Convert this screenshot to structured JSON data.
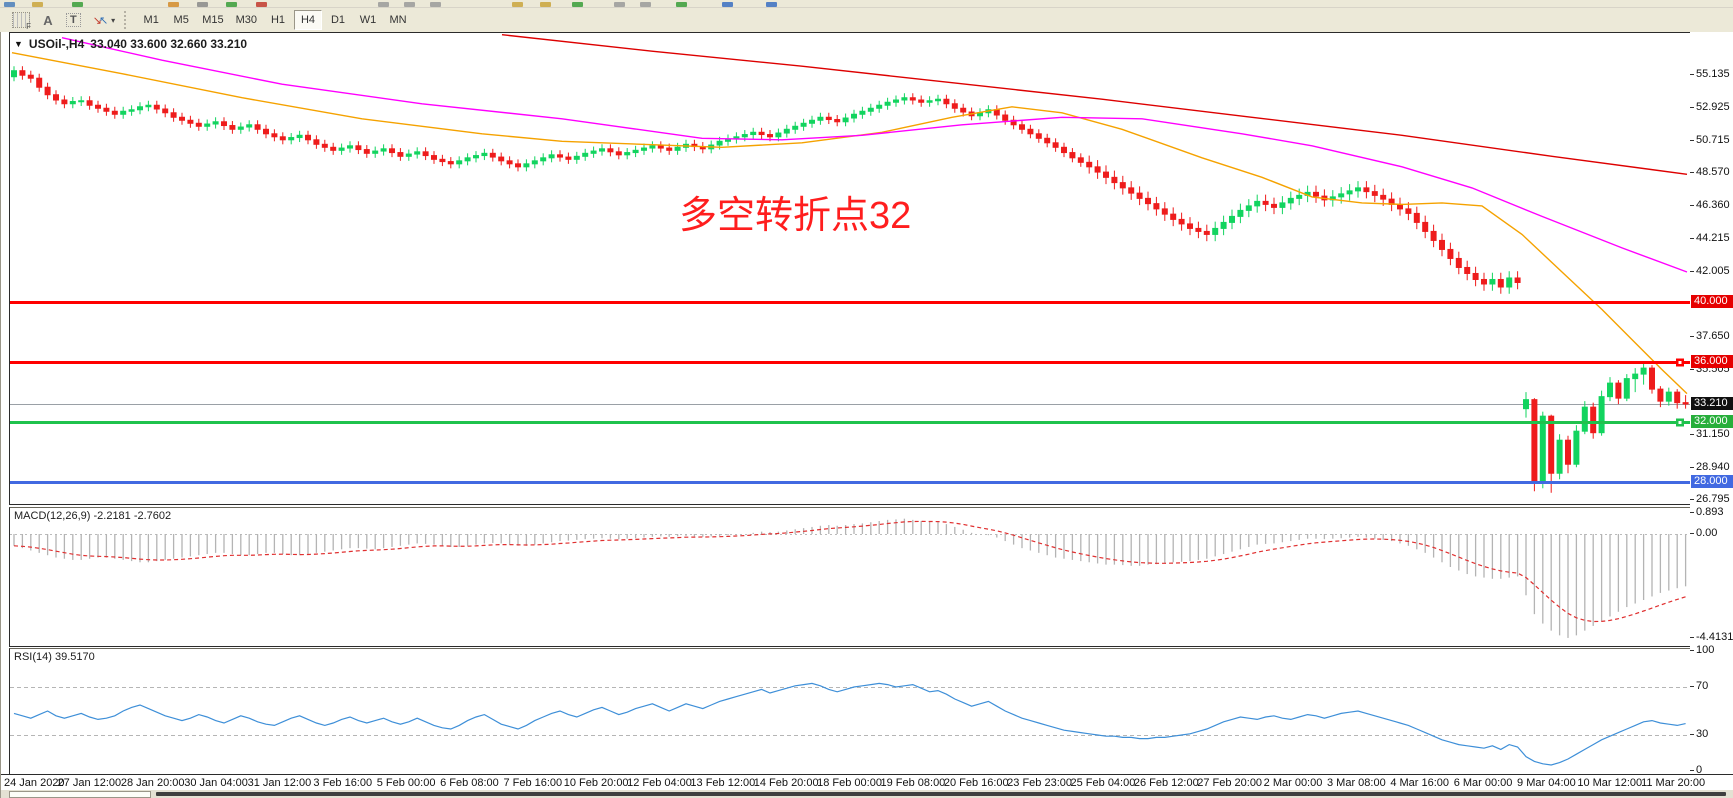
{
  "toolbar": {
    "font_tool_label": "F",
    "letter_tool_label": "A",
    "text_tool_label": "T",
    "arrow_tool_caret": "▾",
    "timeframes": [
      "M1",
      "M5",
      "M15",
      "M30",
      "H1",
      "H4",
      "D1",
      "W1",
      "MN"
    ],
    "active_timeframe": "H4",
    "clipped_icon_colors": [
      [
        "#4a7ebb",
        4
      ],
      [
        "#caa43c",
        32
      ],
      [
        "#3a9d3a",
        72
      ],
      [
        "#d38b2a",
        168
      ],
      [
        "#8a8a8a",
        197
      ],
      [
        "#3a9d3a",
        226
      ],
      [
        "#c23a2e",
        256
      ],
      [
        "#9a9a9a",
        378
      ],
      [
        "#9a9a9a",
        404
      ],
      [
        "#9a9a9a",
        430
      ],
      [
        "#caa43c",
        512
      ],
      [
        "#caa43c",
        540
      ],
      [
        "#3a9d3a",
        572
      ],
      [
        "#9a9a9a",
        614
      ],
      [
        "#9a9a9a",
        640
      ],
      [
        "#3a9d3a",
        676
      ],
      [
        "#3a6fc2",
        722
      ],
      [
        "#3a6fc2",
        766
      ]
    ]
  },
  "chart": {
    "dropdown_glyph": "▼",
    "symbol": "USOil-,H4",
    "ohlc_readout": "33.040 33.600 32.660 33.210",
    "annotation": {
      "text": "多空转折点32",
      "color": "#ff1e1e"
    },
    "price_axis_labels": [
      "55.135",
      "52.925",
      "50.715",
      "48.570",
      "46.360",
      "44.215",
      "42.005",
      "37.650",
      "35.505",
      "31.150",
      "28.940",
      "26.795"
    ],
    "price_badges": [
      {
        "text": "40.000",
        "price": 40.0,
        "bg": "#e60000"
      },
      {
        "text": "36.000",
        "price": 36.0,
        "bg": "#e60000"
      },
      {
        "text": "33.210",
        "price": 33.21,
        "bg": "#101010"
      },
      {
        "text": "32.000",
        "price": 32.0,
        "bg": "#27ae3b"
      },
      {
        "text": "28.000",
        "price": 28.0,
        "bg": "#4169e1"
      }
    ],
    "hlines": [
      {
        "name": "level-40",
        "price": 40.0,
        "color": "#ff0000",
        "w": 3,
        "handle": false
      },
      {
        "name": "level-36",
        "price": 36.0,
        "color": "#ff0000",
        "w": 3,
        "handle": true
      },
      {
        "name": "current-price",
        "price": 33.21,
        "color": "#9aa0a6",
        "w": 1,
        "handle": false
      },
      {
        "name": "level-32",
        "price": 32.0,
        "color": "#1fc24d",
        "w": 3,
        "handle": true
      },
      {
        "name": "level-28",
        "price": 28.0,
        "color": "#4169e1",
        "w": 3,
        "handle": false
      }
    ],
    "time_labels": [
      "24 Jan 2020",
      "27 Jan 12:00",
      "28 Jan 20:00",
      "30 Jan 04:00",
      "31 Jan 12:00",
      "3 Feb 16:00",
      "5 Feb 00:00",
      "6 Feb 08:00",
      "7 Feb 16:00",
      "10 Feb 20:00",
      "12 Feb 04:00",
      "13 Feb 12:00",
      "14 Feb 20:00",
      "18 Feb 00:00",
      "19 Feb 08:00",
      "20 Feb 16:00",
      "23 Feb 23:00",
      "25 Feb 04:00",
      "26 Feb 12:00",
      "27 Feb 20:00",
      "2 Mar 00:00",
      "3 Mar 08:00",
      "4 Mar 16:00",
      "6 Mar 00:00",
      "9 Mar 04:00",
      "10 Mar 12:00",
      "11 Mar 20:00"
    ]
  },
  "indicators": {
    "macd": {
      "name": "MACD(12,26,9)",
      "values": "-2.2181 -2.7602",
      "scale": [
        {
          "v": 0.893,
          "text": "0.893"
        },
        {
          "v": 0,
          "text": "0.00"
        },
        {
          "v": -4.4131,
          "text": "-4.4131"
        }
      ]
    },
    "rsi": {
      "name": "RSI(14)",
      "value": "39.5170",
      "scale": [
        {
          "v": 100,
          "text": "100"
        },
        {
          "v": 70,
          "text": "70"
        },
        {
          "v": 30,
          "text": "30"
        },
        {
          "v": 0,
          "text": "0"
        }
      ],
      "levels": [
        70,
        30
      ]
    }
  },
  "chart_data": {
    "type": "candlestick",
    "symbol": "USOil",
    "timeframe": "H4",
    "title": "USOil-,H4 33.040 33.600 32.660 33.210",
    "visible_range": {
      "first_bar": "24 Jan 2020",
      "last_bar": "11 Mar 2020 20:00"
    },
    "price_axis_range": [
      26.6,
      57.9
    ],
    "grid": false,
    "up_color": "#12d45f",
    "down_color": "#ee1c1c",
    "first_open": 55.0,
    "wick": 0.3,
    "wick_volatile": 0.45,
    "volatile_from_bar": 128,
    "closes": [
      55.4,
      55.1,
      54.9,
      54.3,
      53.8,
      53.45,
      53.2,
      53.35,
      53.4,
      53.1,
      52.9,
      52.7,
      52.5,
      52.7,
      52.8,
      53.0,
      53.1,
      52.85,
      52.6,
      52.3,
      52.1,
      51.9,
      51.7,
      51.85,
      52.0,
      51.75,
      51.5,
      51.65,
      51.8,
      51.5,
      51.2,
      51.0,
      50.8,
      50.95,
      51.1,
      50.8,
      50.5,
      50.3,
      50.1,
      50.25,
      50.4,
      50.15,
      49.9,
      50.05,
      50.2,
      49.95,
      49.7,
      49.85,
      50.0,
      49.75,
      49.5,
      49.35,
      49.2,
      49.4,
      49.6,
      49.75,
      49.9,
      49.65,
      49.4,
      49.2,
      49.0,
      49.2,
      49.4,
      49.6,
      49.8,
      49.65,
      49.5,
      49.7,
      49.9,
      50.05,
      50.2,
      50.0,
      49.8,
      49.95,
      50.1,
      50.25,
      50.4,
      50.25,
      50.1,
      50.3,
      50.5,
      50.35,
      50.2,
      50.45,
      50.7,
      50.85,
      51.0,
      51.15,
      51.3,
      51.15,
      51.0,
      51.25,
      51.5,
      51.7,
      51.9,
      52.1,
      52.3,
      52.15,
      52.0,
      52.25,
      52.5,
      52.7,
      52.9,
      53.1,
      53.3,
      53.45,
      53.6,
      53.45,
      53.3,
      53.4,
      53.5,
      53.2,
      52.9,
      52.65,
      52.4,
      52.6,
      52.8,
      52.45,
      52.1,
      51.8,
      51.5,
      51.2,
      50.9,
      50.6,
      50.3,
      49.95,
      49.6,
      49.3,
      49.0,
      48.65,
      48.3,
      47.95,
      47.6,
      47.25,
      46.9,
      46.55,
      46.2,
      45.85,
      45.5,
      45.2,
      44.9,
      44.7,
      44.5,
      44.9,
      45.3,
      45.7,
      46.1,
      46.4,
      46.7,
      46.5,
      46.3,
      46.6,
      46.9,
      47.1,
      47.3,
      47.05,
      46.8,
      47.0,
      47.2,
      47.4,
      47.6,
      47.35,
      47.1,
      46.85,
      46.5,
      46.2,
      45.9,
      45.3,
      44.7,
      44.1,
      43.5,
      42.9,
      42.3,
      41.9,
      41.5,
      41.2,
      41.5,
      41.0,
      41.6,
      41.3
    ],
    "tail_candles": [
      [
        32.9,
        34.0,
        32.3,
        33.5
      ],
      [
        33.5,
        33.6,
        27.4,
        28.0
      ],
      [
        28.0,
        32.7,
        27.6,
        32.4
      ],
      [
        32.4,
        32.5,
        27.3,
        28.6
      ],
      [
        28.6,
        31.2,
        28.2,
        30.8
      ],
      [
        30.8,
        31.1,
        28.6,
        29.2
      ],
      [
        29.2,
        31.8,
        29.0,
        31.4
      ],
      [
        31.4,
        33.4,
        31.2,
        33.0
      ],
      [
        33.0,
        33.3,
        30.9,
        31.3
      ],
      [
        31.3,
        34.1,
        31.1,
        33.7
      ],
      [
        33.7,
        35.0,
        33.4,
        34.6
      ],
      [
        34.6,
        34.8,
        33.2,
        33.6
      ],
      [
        33.6,
        35.2,
        33.4,
        34.9
      ],
      [
        34.9,
        35.6,
        34.0,
        35.2
      ],
      [
        35.2,
        36.0,
        34.5,
        35.6
      ],
      [
        35.6,
        35.8,
        33.9,
        34.2
      ],
      [
        34.2,
        34.4,
        33.0,
        33.4
      ],
      [
        33.4,
        34.3,
        33.1,
        34.0
      ],
      [
        34.0,
        34.2,
        32.9,
        33.3
      ],
      [
        33.3,
        33.8,
        32.9,
        33.21
      ]
    ],
    "moving_averages": [
      {
        "name": "MA-fast",
        "color": "#f5a200",
        "points_x_price": [
          [
            10,
            56.6
          ],
          [
            120,
            55.2
          ],
          [
            240,
            53.6
          ],
          [
            360,
            52.2
          ],
          [
            480,
            51.2
          ],
          [
            560,
            50.7
          ],
          [
            640,
            50.5
          ],
          [
            720,
            50.3
          ],
          [
            800,
            50.6
          ],
          [
            880,
            51.3
          ],
          [
            950,
            52.3
          ],
          [
            1010,
            53.0
          ],
          [
            1060,
            52.6
          ],
          [
            1120,
            51.5
          ],
          [
            1200,
            49.6
          ],
          [
            1260,
            48.3
          ],
          [
            1310,
            47.0
          ],
          [
            1360,
            46.6
          ],
          [
            1400,
            46.5
          ],
          [
            1440,
            46.6
          ],
          [
            1480,
            46.4
          ],
          [
            1520,
            44.5
          ],
          [
            1560,
            42.0
          ],
          [
            1600,
            39.5
          ],
          [
            1630,
            37.5
          ],
          [
            1660,
            35.5
          ],
          [
            1685,
            33.9
          ]
        ]
      },
      {
        "name": "MA-mid",
        "color": "#ff00ff",
        "points_x_price": [
          [
            60,
            57.6
          ],
          [
            160,
            56.1
          ],
          [
            280,
            54.5
          ],
          [
            420,
            53.2
          ],
          [
            560,
            52.2
          ],
          [
            700,
            50.9
          ],
          [
            780,
            50.8
          ],
          [
            860,
            51.1
          ],
          [
            960,
            51.8
          ],
          [
            1060,
            52.3
          ],
          [
            1140,
            52.2
          ],
          [
            1240,
            51.2
          ],
          [
            1310,
            50.4
          ],
          [
            1400,
            49.0
          ],
          [
            1470,
            47.6
          ],
          [
            1540,
            45.7
          ],
          [
            1620,
            43.6
          ],
          [
            1685,
            42.0
          ]
        ]
      },
      {
        "name": "MA-slow",
        "color": "#dd0000",
        "points_x_price": [
          [
            500,
            57.8
          ],
          [
            650,
            56.7
          ],
          [
            800,
            55.7
          ],
          [
            950,
            54.6
          ],
          [
            1100,
            53.5
          ],
          [
            1250,
            52.3
          ],
          [
            1400,
            51.1
          ],
          [
            1550,
            49.7
          ],
          [
            1685,
            48.5
          ]
        ]
      }
    ],
    "macd": {
      "value": -2.2181,
      "signal_value": -2.7602,
      "range": [
        0.893,
        -4.4131
      ],
      "histogram_color": "#b4b4b4",
      "signal_color": "#e03030",
      "histogram": [
        -0.5,
        -0.6,
        -0.7,
        -0.8,
        -0.9,
        -1.0,
        -1.05,
        -1.1,
        -1.1,
        -1.05,
        -1.0,
        -1.0,
        -1.05,
        -1.1,
        -1.15,
        -1.2,
        -1.2,
        -1.15,
        -1.1,
        -1.05,
        -1.0,
        -0.95,
        -0.9,
        -0.85,
        -0.8,
        -0.8,
        -0.85,
        -0.9,
        -0.9,
        -0.85,
        -0.8,
        -0.8,
        -0.85,
        -0.9,
        -0.9,
        -0.85,
        -0.8,
        -0.75,
        -0.7,
        -0.65,
        -0.6,
        -0.6,
        -0.62,
        -0.65,
        -0.6,
        -0.55,
        -0.5,
        -0.45,
        -0.4,
        -0.42,
        -0.45,
        -0.5,
        -0.55,
        -0.55,
        -0.5,
        -0.45,
        -0.4,
        -0.38,
        -0.4,
        -0.45,
        -0.5,
        -0.5,
        -0.45,
        -0.4,
        -0.35,
        -0.3,
        -0.28,
        -0.25,
        -0.22,
        -0.2,
        -0.18,
        -0.2,
        -0.22,
        -0.2,
        -0.18,
        -0.15,
        -0.12,
        -0.1,
        -0.12,
        -0.1,
        -0.08,
        -0.1,
        -0.12,
        -0.1,
        -0.08,
        -0.05,
        -0.02,
        0.0,
        0.05,
        0.1,
        0.08,
        0.1,
        0.15,
        0.2,
        0.25,
        0.3,
        0.35,
        0.38,
        0.35,
        0.38,
        0.42,
        0.45,
        0.5,
        0.55,
        0.6,
        0.62,
        0.65,
        0.6,
        0.55,
        0.52,
        0.5,
        0.42,
        0.3,
        0.18,
        0.05,
        0.0,
        -0.05,
        -0.15,
        -0.3,
        -0.45,
        -0.6,
        -0.7,
        -0.8,
        -0.9,
        -1.0,
        -1.05,
        -1.1,
        -1.15,
        -1.2,
        -1.25,
        -1.3,
        -1.3,
        -1.32,
        -1.35,
        -1.35,
        -1.3,
        -1.28,
        -1.25,
        -1.2,
        -1.18,
        -1.15,
        -1.1,
        -1.05,
        -0.95,
        -0.85,
        -0.75,
        -0.65,
        -0.55,
        -0.45,
        -0.42,
        -0.4,
        -0.35,
        -0.3,
        -0.25,
        -0.2,
        -0.2,
        -0.22,
        -0.2,
        -0.18,
        -0.15,
        -0.12,
        -0.15,
        -0.2,
        -0.25,
        -0.3,
        -0.4,
        -0.5,
        -0.65,
        -0.8,
        -1.0,
        -1.2,
        -1.4,
        -1.55,
        -1.7,
        -1.8,
        -1.85,
        -1.9,
        -1.9,
        -1.85,
        -1.8,
        -2.6,
        -3.4,
        -3.8,
        -4.1,
        -4.3,
        -4.41,
        -4.3,
        -4.1,
        -3.9,
        -3.7,
        -3.5,
        -3.3,
        -3.1,
        -2.95,
        -2.8,
        -2.65,
        -2.5,
        -2.4,
        -2.3,
        -2.22
      ]
    },
    "rsi": {
      "value": 39.517,
      "color": "#3e8fd8",
      "levels": [
        70,
        30
      ],
      "range": [
        0,
        100
      ],
      "values": [
        48,
        46,
        44,
        47,
        50,
        46,
        44,
        46,
        48,
        45,
        43,
        44,
        46,
        50,
        53,
        55,
        52,
        49,
        46,
        44,
        42,
        44,
        47,
        45,
        42,
        40,
        43,
        46,
        44,
        41,
        39,
        38,
        41,
        44,
        46,
        43,
        40,
        38,
        40,
        43,
        45,
        42,
        40,
        42,
        44,
        41,
        39,
        41,
        44,
        41,
        38,
        36,
        35,
        38,
        42,
        45,
        47,
        43,
        39,
        37,
        35,
        38,
        42,
        45,
        48,
        50,
        47,
        45,
        48,
        51,
        53,
        50,
        47,
        49,
        52,
        54,
        56,
        53,
        50,
        53,
        56,
        54,
        52,
        55,
        58,
        60,
        62,
        64,
        66,
        68,
        65,
        67,
        69,
        71,
        72,
        73,
        71,
        68,
        66,
        68,
        70,
        71,
        72,
        73,
        72,
        70,
        71,
        72,
        69,
        66,
        67,
        64,
        60,
        57,
        54,
        56,
        58,
        54,
        50,
        47,
        44,
        42,
        40,
        38,
        36,
        34,
        33,
        32,
        31,
        30,
        29,
        29,
        28,
        28,
        27,
        27,
        28,
        28,
        29,
        30,
        31,
        33,
        35,
        38,
        41,
        43,
        45,
        44,
        43,
        45,
        46,
        44,
        43,
        45,
        47,
        46,
        44,
        46,
        48,
        49,
        50,
        48,
        46,
        44,
        42,
        40,
        38,
        35,
        32,
        29,
        26,
        24,
        22,
        21,
        20,
        19,
        21,
        18,
        22,
        20,
        12,
        8,
        6,
        5,
        7,
        10,
        14,
        18,
        22,
        26,
        29,
        32,
        35,
        38,
        41,
        42,
        40,
        39,
        38,
        39.5
      ]
    }
  }
}
